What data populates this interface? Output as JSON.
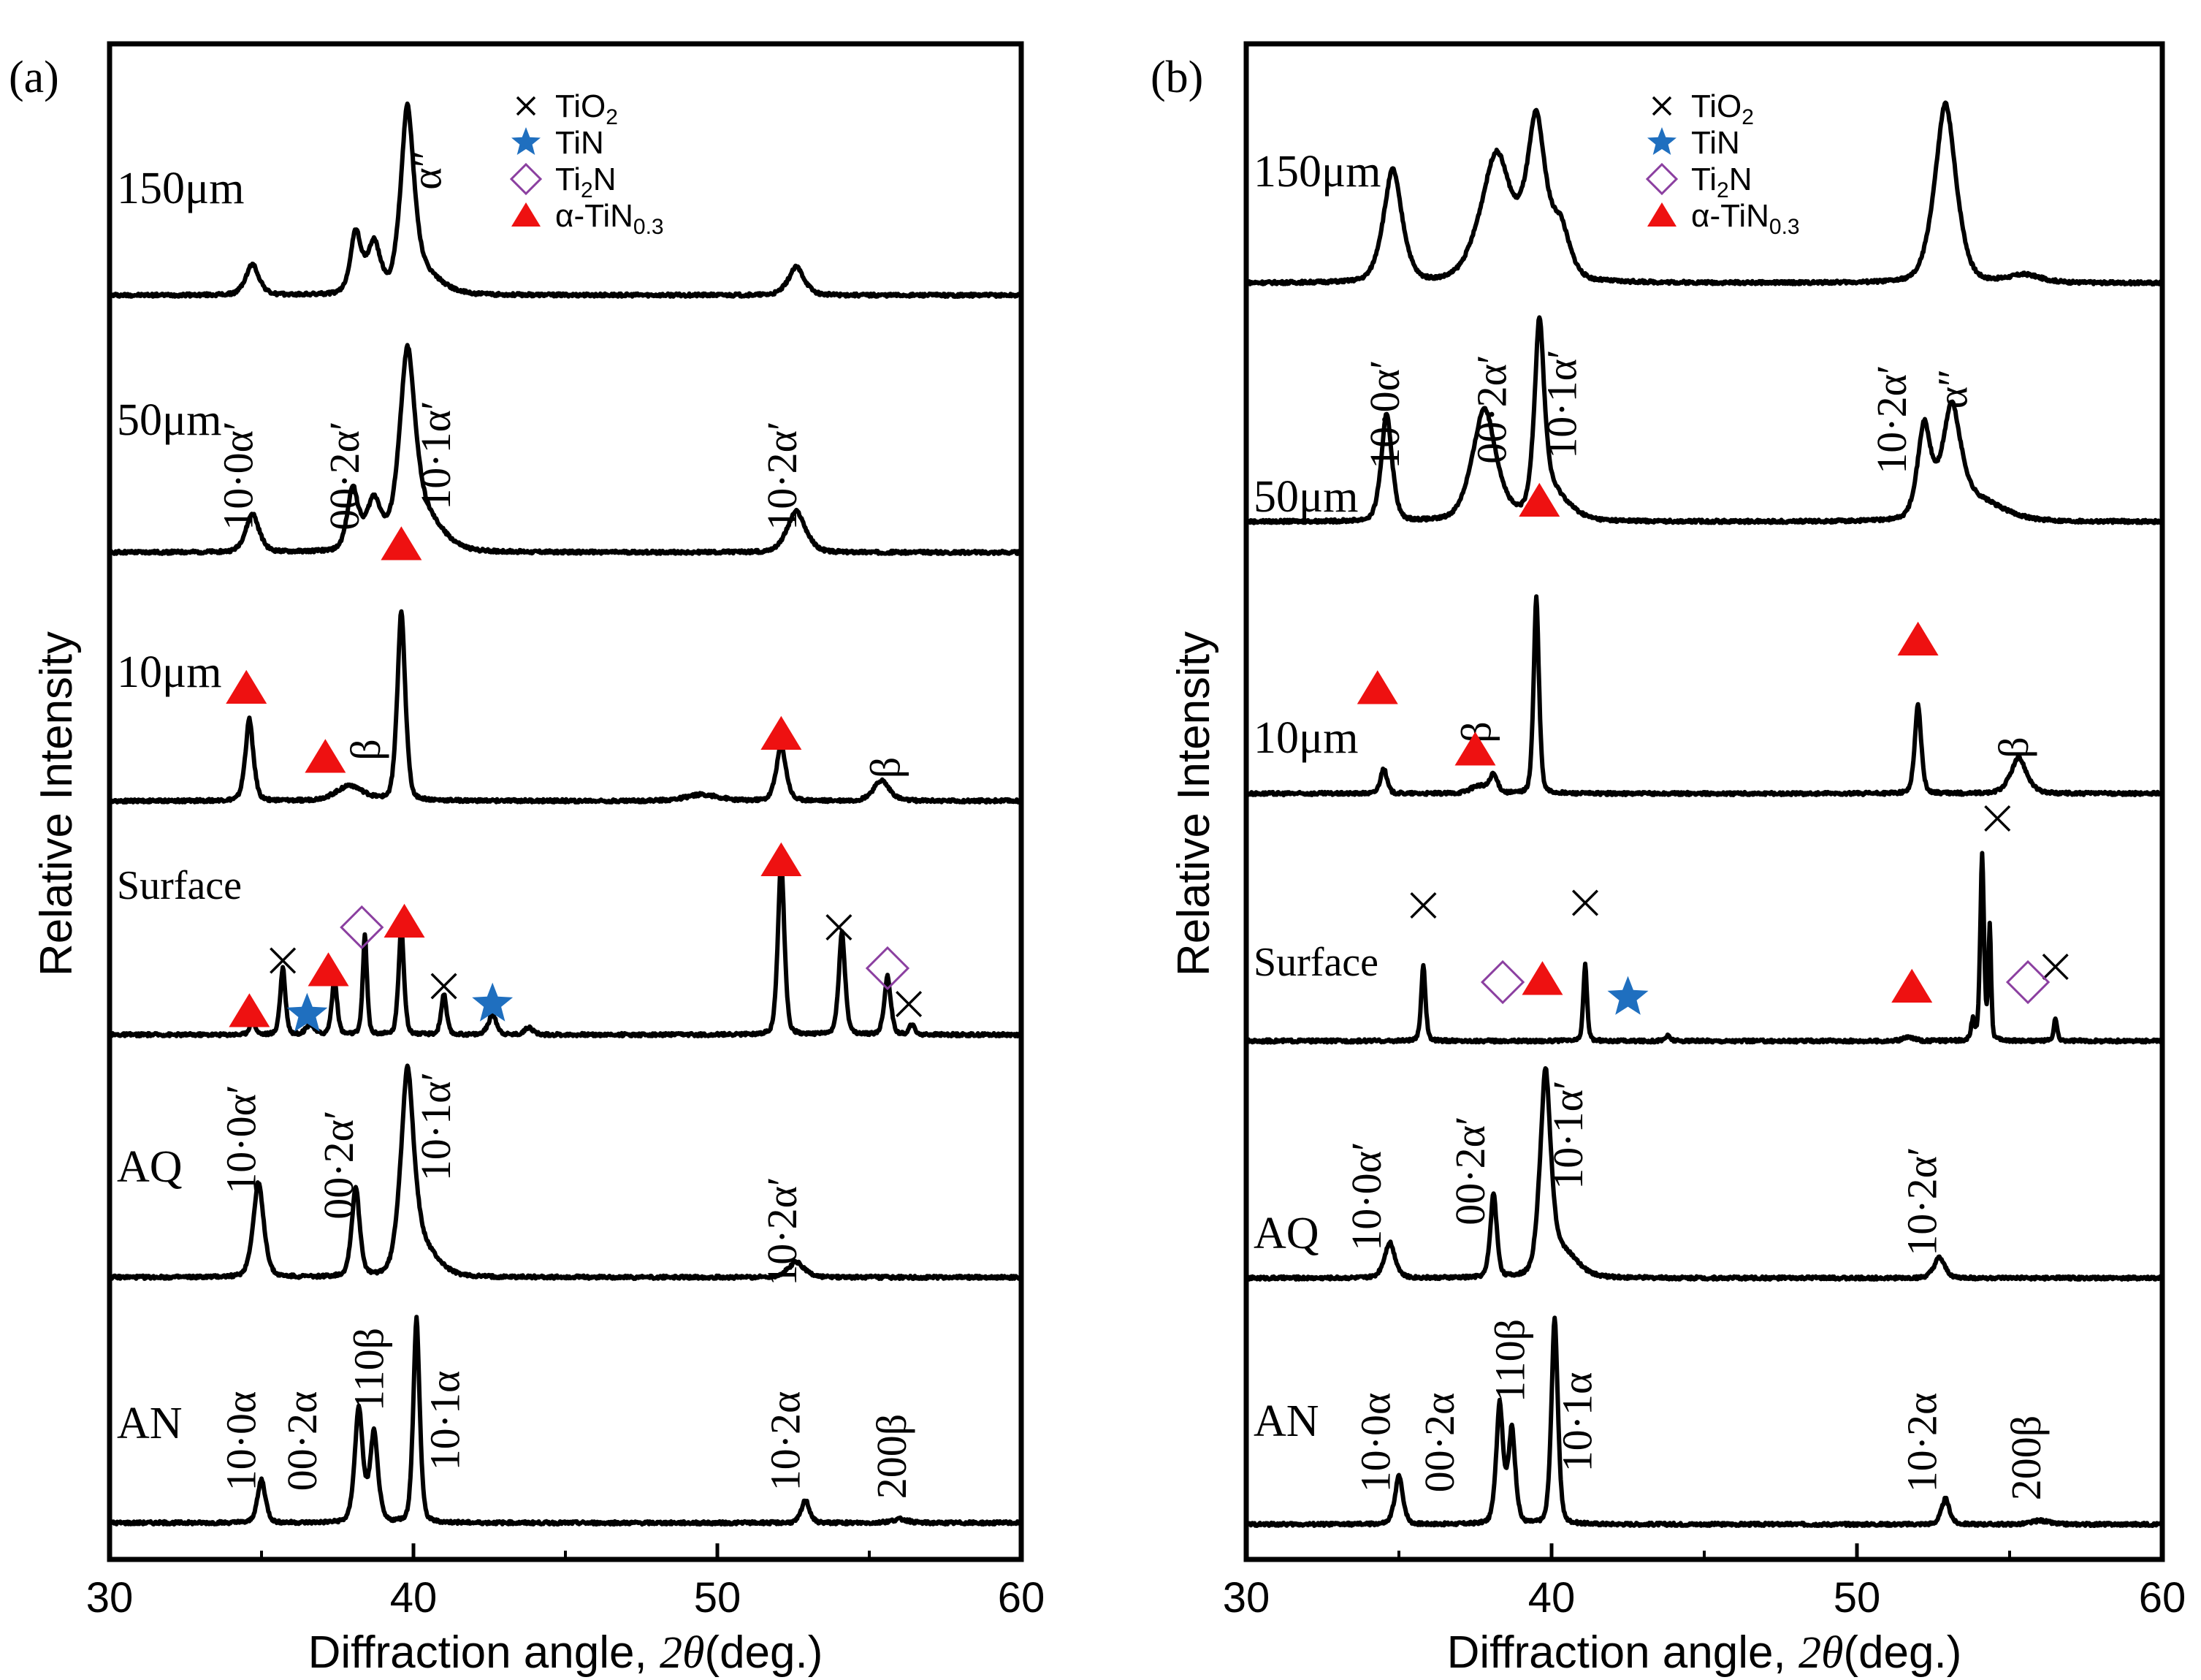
{
  "figure": {
    "ylabel": "Relative Intensity",
    "xlabel": "Diffraction angle,",
    "xlabel_var": "2θ",
    "xlabel_unit": "(deg.)"
  },
  "legend": {
    "items": [
      {
        "marker": "cross-icon",
        "text": "TiO",
        "sub": "2",
        "color": "#000000"
      },
      {
        "marker": "star-icon",
        "text": "TiN",
        "sub": "",
        "color": "#1f6fbf"
      },
      {
        "marker": "diamond-icon",
        "text": "Ti",
        "sub": "2",
        "suffix": "N",
        "color": "#8b3fa0"
      },
      {
        "marker": "triangle-icon",
        "text": "α-TiN",
        "sub": "0.3",
        "color": "#ee1111"
      }
    ]
  },
  "chart_data": [
    {
      "type": "line",
      "panel_label": "(a)",
      "xlim": [
        30,
        60
      ],
      "xticks": [
        "30",
        "40",
        "50",
        "60"
      ],
      "series": [
        {
          "name": "150μm",
          "baseline": 0.4,
          "peaks": [
            [
              34.7,
              1.2,
              0.25
            ],
            [
              38.1,
              2.4,
              0.2
            ],
            [
              38.7,
              2.0,
              0.25
            ],
            [
              39.8,
              7.0,
              0.25
            ],
            [
              40.4,
              0.8,
              0.6
            ],
            [
              52.6,
              1.1,
              0.3
            ]
          ],
          "labels": [
            {
              "text": "α″",
              "x": 40.9,
              "y": 5.3,
              "rotate": -90
            }
          ]
        },
        {
          "name": "50μm",
          "baseline": 0.4,
          "peaks": [
            [
              34.7,
              1.5,
              0.25
            ],
            [
              38.0,
              2.4,
              0.2
            ],
            [
              38.7,
              2.0,
              0.3
            ],
            [
              39.8,
              7.5,
              0.3
            ],
            [
              40.5,
              1.2,
              0.6
            ],
            [
              52.6,
              1.6,
              0.35
            ]
          ],
          "labels": [
            {
              "text": "10·0α′",
              "x": 34.7,
              "y": 3.4,
              "rotate": -90
            },
            {
              "text": "00·2α′",
              "x": 38.2,
              "y": 3.4,
              "rotate": -90
            },
            {
              "text": "10·1α′",
              "x": 41.2,
              "y": 4.2,
              "rotate": -90
            },
            {
              "text": "10·2α′",
              "x": 52.6,
              "y": 3.4,
              "rotate": -90
            }
          ]
        },
        {
          "name": "10μm",
          "baseline": 0.4,
          "peaks": [
            [
              34.6,
              3.2,
              0.15
            ],
            [
              37.9,
              0.6,
              0.5
            ],
            [
              39.6,
              7.4,
              0.15
            ],
            [
              49.5,
              0.25,
              0.6
            ],
            [
              52.1,
              2.2,
              0.18
            ],
            [
              55.4,
              0.8,
              0.3
            ]
          ],
          "labels": [
            {
              "text": "β",
              "x": 38.9,
              "y": 2.4,
              "rotate": -90
            },
            {
              "text": "β",
              "x": 56.0,
              "y": 1.7,
              "rotate": -90
            }
          ]
        },
        {
          "name": "Surface",
          "baseline": 0.4,
          "peaks": [
            [
              34.7,
              0.6,
              0.1
            ],
            [
              35.7,
              2.6,
              0.1
            ],
            [
              36.6,
              0.4,
              0.15
            ],
            [
              37.4,
              2.2,
              0.1
            ],
            [
              38.4,
              3.9,
              0.08
            ],
            [
              39.6,
              4.3,
              0.1
            ],
            [
              41.0,
              1.6,
              0.1
            ],
            [
              42.6,
              0.8,
              0.15
            ],
            [
              43.8,
              0.3,
              0.15
            ],
            [
              52.1,
              6.9,
              0.12
            ],
            [
              54.1,
              4.0,
              0.12
            ],
            [
              55.6,
              2.3,
              0.12
            ],
            [
              56.4,
              0.4,
              0.1
            ]
          ],
          "labels": []
        },
        {
          "name": "AQ",
          "baseline": 0.4,
          "peaks": [
            [
              34.9,
              3.7,
              0.2
            ],
            [
              38.1,
              3.5,
              0.15
            ],
            [
              39.8,
              7.8,
              0.25
            ],
            [
              40.4,
              1.0,
              0.5
            ],
            [
              52.6,
              0.6,
              0.3
            ]
          ],
          "labels": [
            {
              "text": "10·0α′",
              "x": 34.8,
              "y": 5.8,
              "rotate": -90
            },
            {
              "text": "00·2α′",
              "x": 38.0,
              "y": 4.8,
              "rotate": -90
            },
            {
              "text": "10·1α′",
              "x": 41.2,
              "y": 6.3,
              "rotate": -90
            },
            {
              "text": "10·2α′",
              "x": 52.6,
              "y": 2.2,
              "rotate": -90
            }
          ]
        },
        {
          "name": "AN",
          "baseline": 0.4,
          "peaks": [
            [
              35.0,
              1.7,
              0.15
            ],
            [
              38.2,
              4.5,
              0.15
            ],
            [
              38.7,
              3.5,
              0.15
            ],
            [
              40.1,
              8.0,
              0.12
            ],
            [
              52.9,
              0.9,
              0.15
            ],
            [
              56.0,
              0.15,
              0.3
            ]
          ],
          "labels": [
            {
              "text": "10·0α",
              "x": 34.8,
              "y": 3.6,
              "rotate": -90
            },
            {
              "text": "00·2α",
              "x": 36.8,
              "y": 3.6,
              "rotate": -90
            },
            {
              "text": "110β",
              "x": 39.0,
              "y": 6.4,
              "rotate": -90
            },
            {
              "text": "10·1α",
              "x": 41.5,
              "y": 4.4,
              "rotate": -90
            },
            {
              "text": "10·2α",
              "x": 52.7,
              "y": 3.6,
              "rotate": -90
            },
            {
              "text": "200β",
              "x": 56.2,
              "y": 3.0,
              "rotate": -90
            }
          ]
        }
      ],
      "markers": [
        {
          "type": "triangle",
          "x": 34.5,
          "y": 4.8,
          "row": 2
        },
        {
          "type": "triangle",
          "x": 37.1,
          "y": 2.1,
          "row": 2
        },
        {
          "type": "triangle",
          "x": 39.6,
          "y": 0.7,
          "row": 1
        },
        {
          "type": "triangle",
          "x": 52.1,
          "y": 3.0,
          "row": 2
        },
        {
          "type": "triangle",
          "x": 52.1,
          "y": 7.2,
          "row": 3
        },
        {
          "type": "triangle",
          "x": 34.6,
          "y": 1.3,
          "row": 3
        },
        {
          "type": "cross",
          "x": 35.7,
          "y": 3.3,
          "row": 3
        },
        {
          "type": "star",
          "x": 36.5,
          "y": 1.2,
          "row": 3
        },
        {
          "type": "triangle",
          "x": 37.2,
          "y": 2.9,
          "row": 3
        },
        {
          "type": "diamond",
          "x": 38.3,
          "y": 4.6,
          "row": 3
        },
        {
          "type": "triangle",
          "x": 39.7,
          "y": 4.8,
          "row": 3
        },
        {
          "type": "cross",
          "x": 41.0,
          "y": 2.3,
          "row": 3
        },
        {
          "type": "star",
          "x": 42.6,
          "y": 1.6,
          "row": 3
        },
        {
          "type": "cross",
          "x": 54.0,
          "y": 4.6,
          "row": 3
        },
        {
          "type": "diamond",
          "x": 55.6,
          "y": 3.0,
          "row": 3
        },
        {
          "type": "cross",
          "x": 56.3,
          "y": 1.6,
          "row": 3
        }
      ]
    },
    {
      "type": "line",
      "panel_label": "(b)",
      "xlim": [
        30,
        60
      ],
      "xticks": [
        "30",
        "40",
        "50",
        "60"
      ],
      "series": [
        {
          "name": "150μm",
          "baseline": 0.5,
          "peaks": [
            [
              34.8,
              4.4,
              0.35
            ],
            [
              38.2,
              5.0,
              0.6
            ],
            [
              39.5,
              6.0,
              0.35
            ],
            [
              40.3,
              2.0,
              0.35
            ],
            [
              52.9,
              7.0,
              0.4
            ],
            [
              55.5,
              0.3,
              0.6
            ]
          ],
          "labels": []
        },
        {
          "name": "50μm",
          "baseline": 0.6,
          "peaks": [
            [
              34.6,
              4.2,
              0.2
            ],
            [
              37.8,
              4.4,
              0.45
            ],
            [
              39.6,
              7.1,
              0.18
            ],
            [
              40.0,
              1.2,
              0.6
            ],
            [
              52.2,
              3.6,
              0.25
            ],
            [
              53.1,
              4.2,
              0.35
            ],
            [
              54.0,
              0.8,
              0.9
            ]
          ],
          "labels": [
            {
              "text": "10·0α′",
              "x": 35.0,
              "y": 4.8,
              "rotate": -90
            },
            {
              "text": "00·2α′",
              "x": 38.5,
              "y": 5.0,
              "rotate": -90
            },
            {
              "text": "10·1α′",
              "x": 40.8,
              "y": 5.2,
              "rotate": -90
            },
            {
              "text": "10·2α′",
              "x": 51.6,
              "y": 4.6,
              "rotate": -90
            },
            {
              "text": "α″",
              "x": 53.6,
              "y": 5.8,
              "rotate": -90
            }
          ]
        },
        {
          "name": "10μm",
          "baseline": 0.4,
          "peaks": [
            [
              34.5,
              1.0,
              0.12
            ],
            [
              37.6,
              0.3,
              0.3
            ],
            [
              38.1,
              0.7,
              0.15
            ],
            [
              39.5,
              7.7,
              0.1
            ],
            [
              52.0,
              3.5,
              0.12
            ],
            [
              55.3,
              1.4,
              0.3
            ]
          ],
          "labels": [
            {
              "text": "β",
              "x": 38.0,
              "y": 2.8,
              "rotate": -90
            },
            {
              "text": "β",
              "x": 55.6,
              "y": 2.2,
              "rotate": -90
            }
          ]
        },
        {
          "name": "Surface",
          "baseline": 0.3,
          "peaks": [
            [
              35.8,
              3.0,
              0.08
            ],
            [
              41.1,
              3.0,
              0.07
            ],
            [
              43.8,
              0.2,
              0.1
            ],
            [
              51.7,
              0.15,
              0.2
            ],
            [
              53.8,
              0.8,
              0.07
            ],
            [
              54.1,
              7.3,
              0.07
            ],
            [
              54.35,
              4.5,
              0.05
            ],
            [
              56.5,
              0.9,
              0.06
            ]
          ],
          "labels": []
        },
        {
          "name": "AQ",
          "baseline": 0.4,
          "peaks": [
            [
              34.7,
              1.4,
              0.2
            ],
            [
              38.1,
              3.3,
              0.12
            ],
            [
              39.8,
              7.8,
              0.2
            ],
            [
              40.4,
              1.0,
              0.5
            ],
            [
              52.7,
              0.8,
              0.2
            ]
          ],
          "labels": [
            {
              "text": "10·0α′",
              "x": 34.4,
              "y": 3.6,
              "rotate": -90
            },
            {
              "text": "00·2α′",
              "x": 37.8,
              "y": 4.6,
              "rotate": -90
            },
            {
              "text": "10·1α′",
              "x": 41.0,
              "y": 6.0,
              "rotate": -90
            },
            {
              "text": "10·2α′",
              "x": 52.6,
              "y": 3.4,
              "rotate": -90
            }
          ]
        },
        {
          "name": "AN",
          "baseline": 0.4,
          "peaks": [
            [
              35.0,
              1.9,
              0.15
            ],
            [
              38.3,
              4.7,
              0.13
            ],
            [
              38.7,
              3.7,
              0.13
            ],
            [
              40.1,
              8.1,
              0.12
            ],
            [
              52.9,
              1.0,
              0.15
            ],
            [
              56.0,
              0.15,
              0.3
            ]
          ],
          "labels": [
            {
              "text": "10·0α",
              "x": 34.7,
              "y": 3.6,
              "rotate": -90
            },
            {
              "text": "00·2α",
              "x": 36.8,
              "y": 3.6,
              "rotate": -90
            },
            {
              "text": "110β",
              "x": 39.1,
              "y": 6.8,
              "rotate": -90
            },
            {
              "text": "10·1α",
              "x": 41.3,
              "y": 4.4,
              "rotate": -90
            },
            {
              "text": "10·2α",
              "x": 52.6,
              "y": 3.6,
              "rotate": -90
            },
            {
              "text": "200β",
              "x": 56.0,
              "y": 3.0,
              "rotate": -90
            }
          ]
        }
      ],
      "markers": [
        {
          "type": "triangle",
          "x": 39.6,
          "y": 1.4,
          "row": 1
        },
        {
          "type": "triangle",
          "x": 34.3,
          "y": 4.5,
          "row": 2
        },
        {
          "type": "triangle",
          "x": 37.5,
          "y": 2.1,
          "row": 2
        },
        {
          "type": "triangle",
          "x": 52.0,
          "y": 6.4,
          "row": 2
        },
        {
          "type": "cross",
          "x": 35.8,
          "y": 5.6,
          "row": 3
        },
        {
          "type": "cross",
          "x": 41.1,
          "y": 5.7,
          "row": 3
        },
        {
          "type": "cross",
          "x": 54.6,
          "y": 9.0,
          "row": 3
        },
        {
          "type": "cross",
          "x": 56.5,
          "y": 3.2,
          "row": 3
        },
        {
          "type": "diamond",
          "x": 38.4,
          "y": 2.6,
          "row": 3
        },
        {
          "type": "triangle",
          "x": 39.7,
          "y": 2.7,
          "row": 3
        },
        {
          "type": "star",
          "x": 42.5,
          "y": 2.0,
          "row": 3
        },
        {
          "type": "triangle",
          "x": 51.8,
          "y": 2.4,
          "row": 3
        },
        {
          "type": "diamond",
          "x": 55.6,
          "y": 2.6,
          "row": 3
        }
      ]
    }
  ]
}
